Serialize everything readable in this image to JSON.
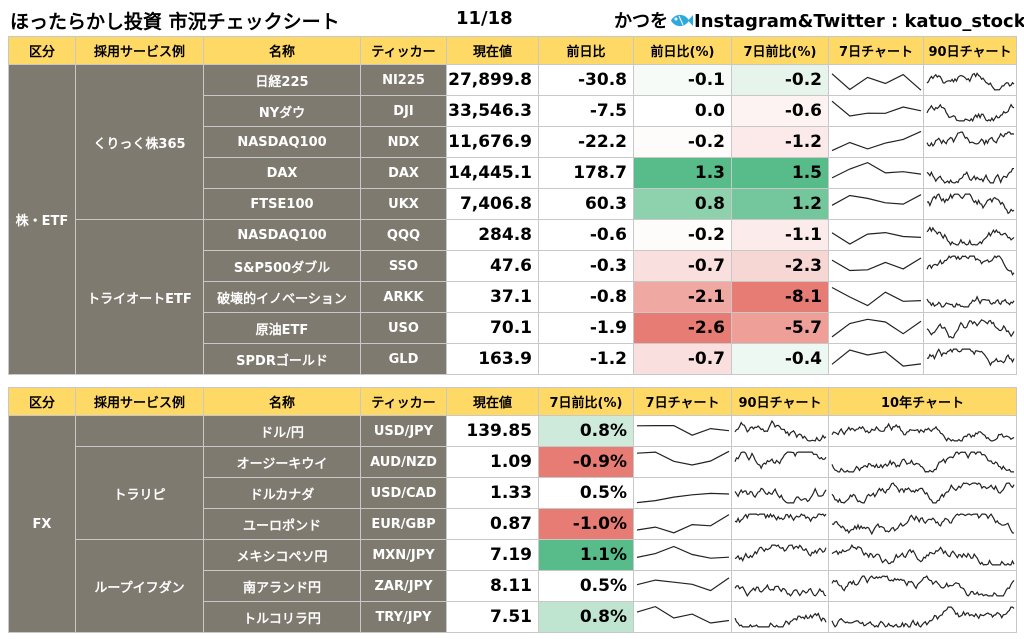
{
  "header": {
    "title": "ほったらかし投資 市況チェックシート",
    "date": "11/18",
    "credit_prefix": "かつを",
    "credit_suffix": "Instagram&Twitter : katuo_stock"
  },
  "colors": {
    "header_bg": "#ffd966",
    "label_bg": "#7f7a70",
    "positive_strong": "#57bb8a",
    "negative_strong": "#e67c73"
  },
  "stocks": {
    "columns": [
      "区分",
      "採用サービス例",
      "名称",
      "ティッカー",
      "現在値",
      "前日比",
      "前日比(%)",
      "7日前比(%)",
      "7日チャート",
      "90日チャート"
    ],
    "category": "株・ETF",
    "groups": [
      "くりっく株365",
      "トライオートETF"
    ],
    "rows": [
      {
        "name": "日経225",
        "ticker": "NI225",
        "price": "27,899.8",
        "change": "-30.8",
        "pct": "-0.1",
        "pct7": "-0.2",
        "bg1": "#f6fbf8",
        "bg2": "#e6f4ec"
      },
      {
        "name": "NYダウ",
        "ticker": "DJI",
        "price": "33,546.3",
        "change": "-7.5",
        "pct": "0.0",
        "pct7": "-0.6",
        "bg1": "#ffffff",
        "bg2": "#fdf3f2"
      },
      {
        "name": "NASDAQ100",
        "ticker": "NDX",
        "price": "11,676.9",
        "change": "-22.2",
        "pct": "-0.2",
        "pct7": "-1.2",
        "bg1": "#fefbfb",
        "bg2": "#fbeae9"
      },
      {
        "name": "DAX",
        "ticker": "DAX",
        "price": "14,445.1",
        "change": "178.7",
        "pct": "1.3",
        "pct7": "1.5",
        "bg1": "#57bb8a",
        "bg2": "#57bb8a"
      },
      {
        "name": "FTSE100",
        "ticker": "UKX",
        "price": "7,406.8",
        "change": "60.3",
        "pct": "0.8",
        "pct7": "1.2",
        "bg1": "#8ed1ad",
        "bg2": "#74c79c"
      },
      {
        "name": "NASDAQ100",
        "ticker": "QQQ",
        "price": "284.8",
        "change": "-0.6",
        "pct": "-0.2",
        "pct7": "-1.1",
        "bg1": "#fefbfb",
        "bg2": "#fbebea"
      },
      {
        "name": "S&P500ダブル",
        "ticker": "SSO",
        "price": "47.6",
        "change": "-0.3",
        "pct": "-0.7",
        "pct7": "-2.3",
        "bg1": "#f9e0de",
        "bg2": "#f7d7d4"
      },
      {
        "name": "破壊的イノベーション",
        "ticker": "ARKK",
        "price": "37.1",
        "change": "-0.8",
        "pct": "-2.1",
        "pct7": "-8.1",
        "bg1": "#f0a8a2",
        "bg2": "#e67c73"
      },
      {
        "name": "原油ETF",
        "ticker": "USO",
        "price": "70.1",
        "change": "-1.9",
        "pct": "-2.6",
        "pct7": "-5.7",
        "bg1": "#e67c73",
        "bg2": "#ee9f98"
      },
      {
        "name": "SPDRゴールド",
        "ticker": "GLD",
        "price": "163.9",
        "change": "-1.2",
        "pct": "-0.7",
        "pct7": "-0.4",
        "bg1": "#f9e0de",
        "bg2": "#eef8f2"
      }
    ]
  },
  "fx": {
    "columns": [
      "区分",
      "採用サービス例",
      "名称",
      "ティッカー",
      "現在値",
      "7日前比(%)",
      "7日チャート",
      "90日チャート",
      "10年チャート"
    ],
    "category": "FX",
    "groups": [
      "トラリピ",
      "ループイフダン"
    ],
    "rows": [
      {
        "name": "ドル/円",
        "ticker": "USD/JPY",
        "price": "139.85",
        "pct7": "0.8%",
        "bg": "#cdeadb"
      },
      {
        "name": "オージーキウイ",
        "ticker": "AUD/NZD",
        "price": "1.09",
        "pct7": "-0.9%",
        "bg": "#e67c73"
      },
      {
        "name": "ドルカナダ",
        "ticker": "USD/CAD",
        "price": "1.33",
        "pct7": "0.5%",
        "bg": "#ffffff"
      },
      {
        "name": "ユーロポンド",
        "ticker": "EUR/GBP",
        "price": "0.87",
        "pct7": "-1.0%",
        "bg": "#e67c73"
      },
      {
        "name": "メキシコペソ円",
        "ticker": "MXN/JPY",
        "price": "7.19",
        "pct7": "1.1%",
        "bg": "#57bb8a"
      },
      {
        "name": "南アランド円",
        "ticker": "ZAR/JPY",
        "price": "8.11",
        "pct7": "0.5%",
        "bg": "#ffffff"
      },
      {
        "name": "トルコリラ円",
        "ticker": "TRY/JPY",
        "price": "7.51",
        "pct7": "0.8%",
        "bg": "#bfe4d0"
      }
    ]
  }
}
